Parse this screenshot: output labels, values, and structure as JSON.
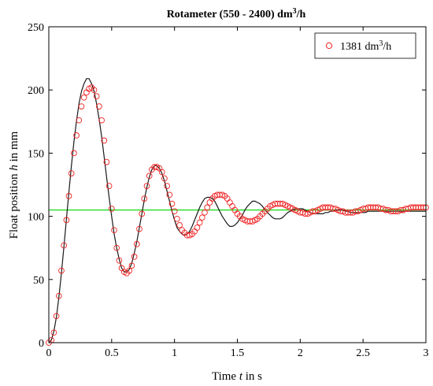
{
  "chart_data": {
    "type": "line",
    "title_main": "Rotameter (550 - 2400) dm",
    "title_sup": "3",
    "title_tail": "/h",
    "xlabel_pre": "Time ",
    "xlabel_var": "t",
    "xlabel_post": " in s",
    "ylabel_pre": "Float position ",
    "ylabel_var": "h",
    "ylabel_post": " in mm",
    "xlim": [
      0,
      3
    ],
    "ylim": [
      0,
      250
    ],
    "xticks": [
      0,
      0.5,
      1,
      1.5,
      2,
      2.5,
      3
    ],
    "xtick_labels": [
      "0",
      "0.5",
      "1",
      "1.5",
      "2",
      "2.5",
      "3"
    ],
    "yticks": [
      0,
      50,
      100,
      150,
      200,
      250
    ],
    "ytick_labels": [
      "0",
      "50",
      "100",
      "150",
      "200",
      "250"
    ],
    "legend_placement": "top-right",
    "grid": false,
    "legend": {
      "label_pre": "1381 dm",
      "label_sup": "3",
      "label_post": "/h"
    },
    "reference_line": {
      "y": 105,
      "color": "#22dd22"
    },
    "model_color": "#1a1a1a",
    "marker_color": "#ee2222",
    "series": [
      {
        "marker": "circle",
        "x": [
          0.0,
          0.02,
          0.04,
          0.06,
          0.08,
          0.1,
          0.12,
          0.14,
          0.16,
          0.18,
          0.2,
          0.22,
          0.24,
          0.26,
          0.28,
          0.3,
          0.32,
          0.34,
          0.36,
          0.38,
          0.4,
          0.42,
          0.44,
          0.46,
          0.48,
          0.5,
          0.52,
          0.54,
          0.56,
          0.58,
          0.6,
          0.62,
          0.64,
          0.66,
          0.68,
          0.7,
          0.72,
          0.74,
          0.76,
          0.78,
          0.8,
          0.82,
          0.84,
          0.86,
          0.88,
          0.9,
          0.92,
          0.94,
          0.96,
          0.98,
          1.0,
          1.02,
          1.04,
          1.06,
          1.08,
          1.1,
          1.12,
          1.14,
          1.16,
          1.18,
          1.2,
          1.22,
          1.24,
          1.26,
          1.28,
          1.3,
          1.32,
          1.34,
          1.36,
          1.38,
          1.4,
          1.42,
          1.44,
          1.46,
          1.48,
          1.5,
          1.52,
          1.54,
          1.56,
          1.58,
          1.6,
          1.62,
          1.64,
          1.66,
          1.68,
          1.7,
          1.72,
          1.74,
          1.76,
          1.78,
          1.8,
          1.82,
          1.84,
          1.86,
          1.88,
          1.9,
          1.92,
          1.94,
          1.96,
          1.98,
          2.0,
          2.02,
          2.04,
          2.06,
          2.08,
          2.1,
          2.12,
          2.14,
          2.16,
          2.18,
          2.2,
          2.22,
          2.24,
          2.26,
          2.28,
          2.3,
          2.32,
          2.34,
          2.36,
          2.38,
          2.4,
          2.42,
          2.44,
          2.46,
          2.48,
          2.5,
          2.52,
          2.54,
          2.56,
          2.58,
          2.6,
          2.62,
          2.64,
          2.66,
          2.68,
          2.7,
          2.72,
          2.74,
          2.76,
          2.78,
          2.8,
          2.82,
          2.84,
          2.86,
          2.88,
          2.9,
          2.92,
          2.94,
          2.96,
          2.98,
          3.0
        ],
        "y": [
          0,
          2,
          8,
          21,
          37,
          57,
          77,
          97,
          116,
          134,
          150,
          164,
          176,
          187,
          194,
          198,
          201,
          202,
          200,
          195,
          187,
          176,
          160,
          143,
          124,
          106,
          89,
          75,
          65,
          59,
          56,
          55,
          57,
          61,
          68,
          78,
          90,
          102,
          114,
          124,
          132,
          137,
          139,
          139,
          138,
          135,
          130,
          124,
          117,
          110,
          104,
          98,
          93,
          89,
          87,
          85,
          85,
          86,
          88,
          91,
          95,
          99,
          103,
          107,
          111,
          114,
          116,
          117,
          117,
          117,
          116,
          114,
          111,
          108,
          105,
          102,
          100,
          98,
          97,
          96,
          96,
          96,
          97,
          98,
          100,
          102,
          104,
          106,
          108,
          109,
          110,
          110,
          110,
          110,
          109,
          108,
          107,
          106,
          105,
          104,
          103,
          103,
          102,
          102,
          103,
          104,
          104,
          105,
          106,
          107,
          107,
          107,
          107,
          106,
          106,
          105,
          104,
          104,
          103,
          103,
          103,
          103,
          104,
          104,
          105,
          106,
          106,
          107,
          107,
          107,
          107,
          107,
          106,
          106,
          105,
          105,
          104,
          104,
          104,
          104,
          105,
          105,
          106,
          106,
          107,
          107,
          107,
          107,
          107,
          107,
          107
        ]
      },
      {
        "marker": "none",
        "x": [
          0.0,
          0.02,
          0.04,
          0.06,
          0.08,
          0.1,
          0.12,
          0.14,
          0.16,
          0.18,
          0.2,
          0.22,
          0.24,
          0.26,
          0.28,
          0.3,
          0.32,
          0.34,
          0.36,
          0.38,
          0.4,
          0.42,
          0.44,
          0.46,
          0.48,
          0.5,
          0.52,
          0.54,
          0.56,
          0.58,
          0.6,
          0.62,
          0.64,
          0.66,
          0.68,
          0.7,
          0.72,
          0.74,
          0.76,
          0.78,
          0.8,
          0.82,
          0.84,
          0.86,
          0.88,
          0.9,
          0.92,
          0.94,
          0.96,
          0.98,
          1.0,
          1.02,
          1.04,
          1.06,
          1.08,
          1.1,
          1.12,
          1.14,
          1.16,
          1.18,
          1.2,
          1.22,
          1.24,
          1.26,
          1.28,
          1.3,
          1.32,
          1.34,
          1.36,
          1.38,
          1.4,
          1.42,
          1.44,
          1.46,
          1.48,
          1.5,
          1.52,
          1.54,
          1.56,
          1.58,
          1.6,
          1.62,
          1.64,
          1.66,
          1.68,
          1.7,
          1.72,
          1.74,
          1.76,
          1.78,
          1.8,
          1.82,
          1.84,
          1.86,
          1.88,
          1.9,
          1.92,
          1.94,
          1.96,
          1.98,
          2.0,
          2.02,
          2.04,
          2.06,
          2.08,
          2.1,
          2.12,
          2.14,
          2.16,
          2.18,
          2.2,
          2.22,
          2.24,
          2.26,
          2.28,
          2.3,
          2.32,
          2.34,
          2.36,
          2.38,
          2.4,
          2.42,
          2.44,
          2.46,
          2.48,
          2.5,
          2.52,
          2.54,
          2.56,
          2.58,
          2.6,
          2.62,
          2.64,
          2.66,
          2.68,
          2.7,
          2.72,
          2.74,
          2.76,
          2.78,
          2.8,
          2.82,
          2.84,
          2.86,
          2.88,
          2.9,
          2.92,
          2.94,
          2.96,
          2.98,
          3.0
        ],
        "y": [
          0,
          2,
          9,
          20,
          36,
          55,
          76,
          98,
          119,
          140,
          159,
          175,
          189,
          199,
          205,
          209,
          209,
          205,
          199,
          189,
          177,
          163,
          147,
          131,
          115,
          100,
          86,
          75,
          66,
          59,
          56,
          56,
          58,
          63,
          71,
          80,
          91,
          102,
          113,
          123,
          131,
          137,
          140,
          140,
          138,
          134,
          128,
          120,
          112,
          104,
          97,
          91,
          88,
          86,
          85,
          86,
          88,
          92,
          97,
          102,
          107,
          111,
          114,
          115,
          115,
          114,
          112,
          108,
          104,
          100,
          97,
          94,
          92,
          92,
          93,
          95,
          98,
          101,
          105,
          108,
          110,
          112,
          112,
          111,
          110,
          108,
          105,
          103,
          101,
          99,
          98,
          98,
          98,
          99,
          101,
          103,
          104,
          105,
          106,
          106,
          106,
          106,
          105,
          104,
          103,
          102,
          102,
          102,
          102,
          102,
          103,
          103,
          104,
          104,
          105,
          105,
          105,
          105,
          104,
          104,
          103,
          103,
          103,
          103,
          103,
          103,
          103,
          104,
          104,
          104,
          104,
          104,
          104,
          104,
          104,
          104,
          104,
          104,
          104,
          104,
          104,
          104,
          104,
          104,
          104,
          104,
          104,
          104,
          104,
          104,
          104
        ]
      }
    ]
  }
}
